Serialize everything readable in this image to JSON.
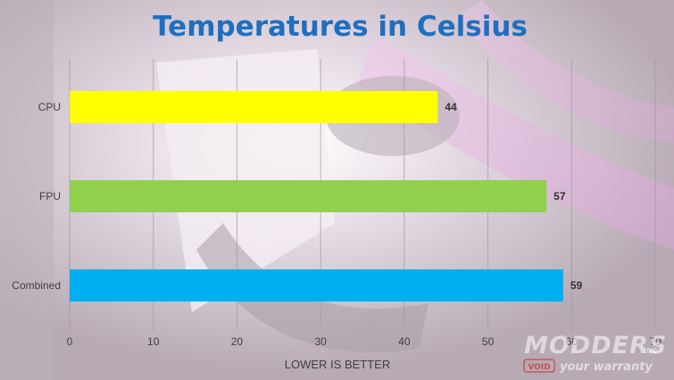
{
  "chart_data": {
    "type": "bar",
    "orientation": "horizontal",
    "title": "Temperatures in Celsius",
    "categories": [
      "CPU",
      "FPU",
      "Combined"
    ],
    "values": [
      44,
      57,
      59
    ],
    "bar_colors": [
      "#ffff00",
      "#92d050",
      "#00b0f0"
    ],
    "xlabel": "LOWER IS BETTER",
    "ylabel": "",
    "xlim": [
      0,
      70
    ],
    "xticks": [
      0,
      10,
      20,
      30,
      40,
      50,
      60,
      70
    ],
    "grid": true,
    "legend": "none"
  },
  "watermark": {
    "brand": "MODDERS",
    "inc": "INC",
    "void_text": "VOID",
    "tagline": "your warranty"
  },
  "colors": {
    "title": "#1f6fbf",
    "grid": "#9a9a9a"
  }
}
